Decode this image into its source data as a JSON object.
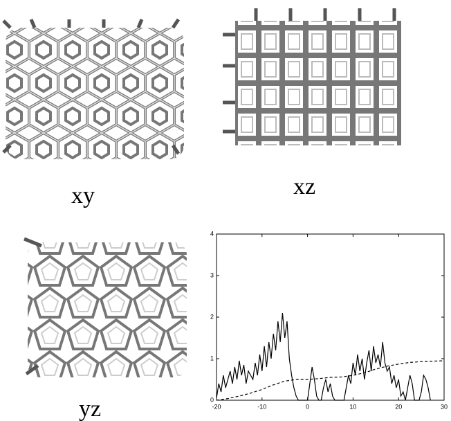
{
  "panels": [
    {
      "label": "xy"
    },
    {
      "label": "xz"
    },
    {
      "label": "yz"
    }
  ],
  "chart_data": {
    "type": "line",
    "xlim": [
      -20,
      30
    ],
    "xticks": [
      -20,
      -10,
      0,
      10,
      20,
      30
    ],
    "ylim": [
      0,
      4
    ],
    "yticks": [
      0,
      1,
      2,
      3,
      4
    ],
    "series": [
      {
        "color": "#000000",
        "dash": "solid",
        "x": [
          -20,
          -19.5,
          -19,
          -18.5,
          -18,
          -17,
          -16.5,
          -16,
          -15.5,
          -15,
          -14.5,
          -14,
          -13.5,
          -13,
          -12,
          -11.5,
          -11,
          -10.5,
          -10,
          -9.5,
          -9,
          -8.5,
          -8,
          -7.5,
          -7,
          -6.5,
          -6,
          -5.5,
          -5,
          -4.5,
          -4,
          -3.5,
          -3,
          -2.5,
          -2,
          -1,
          0,
          0.5,
          1,
          1.5,
          2,
          2.5,
          3,
          3.5,
          4,
          4.5,
          5,
          5.5,
          6,
          7,
          8,
          8.5,
          9,
          9.5,
          10,
          10.5,
          11,
          11.5,
          12,
          12.5,
          13,
          13.5,
          14,
          14.5,
          15,
          15.5,
          16,
          16.5,
          17,
          17.5,
          18,
          18.5,
          19,
          19.5,
          20,
          20.5,
          21,
          21.5,
          22,
          22.5,
          23,
          23.5,
          24,
          24.5,
          25,
          25.5,
          26,
          26.5,
          27
        ],
        "values": [
          0.05,
          0.4,
          0.2,
          0.6,
          0.3,
          0.7,
          0.4,
          0.8,
          0.5,
          0.95,
          0.6,
          0.85,
          0.4,
          0.7,
          0.5,
          0.9,
          0.6,
          1.1,
          0.7,
          1.3,
          0.8,
          1.4,
          1.0,
          1.6,
          1.2,
          1.9,
          1.4,
          2.1,
          1.5,
          1.9,
          1.0,
          0.6,
          0.3,
          0.1,
          0,
          0,
          0,
          0.4,
          0.8,
          0.5,
          0.1,
          0,
          0,
          0.3,
          0.5,
          0.2,
          0.4,
          0.1,
          0,
          0,
          0,
          0.3,
          0.6,
          0.4,
          0.9,
          0.6,
          1.1,
          0.7,
          1.0,
          0.5,
          0.9,
          1.2,
          0.7,
          1.3,
          0.9,
          1.1,
          0.8,
          1.4,
          0.9,
          0.7,
          0.8,
          0.4,
          0.6,
          0.3,
          0.5,
          0.1,
          0.2,
          0,
          0.3,
          0.6,
          0.4,
          0,
          0,
          0,
          0.2,
          0.6,
          0.5,
          0.3,
          0
        ]
      },
      {
        "color": "#000000",
        "dash": "dashed",
        "x": [
          -20,
          -17.5,
          -15,
          -12.5,
          -10,
          -7.5,
          -5,
          -2.5,
          0,
          2.5,
          5,
          7.5,
          10,
          12.5,
          15,
          17.5,
          20,
          22.5,
          25,
          27.5,
          30
        ],
        "values": [
          0,
          0.04,
          0.1,
          0.17,
          0.26,
          0.37,
          0.46,
          0.5,
          0.5,
          0.52,
          0.55,
          0.56,
          0.6,
          0.66,
          0.75,
          0.82,
          0.87,
          0.91,
          0.93,
          0.94,
          0.95
        ]
      }
    ]
  }
}
